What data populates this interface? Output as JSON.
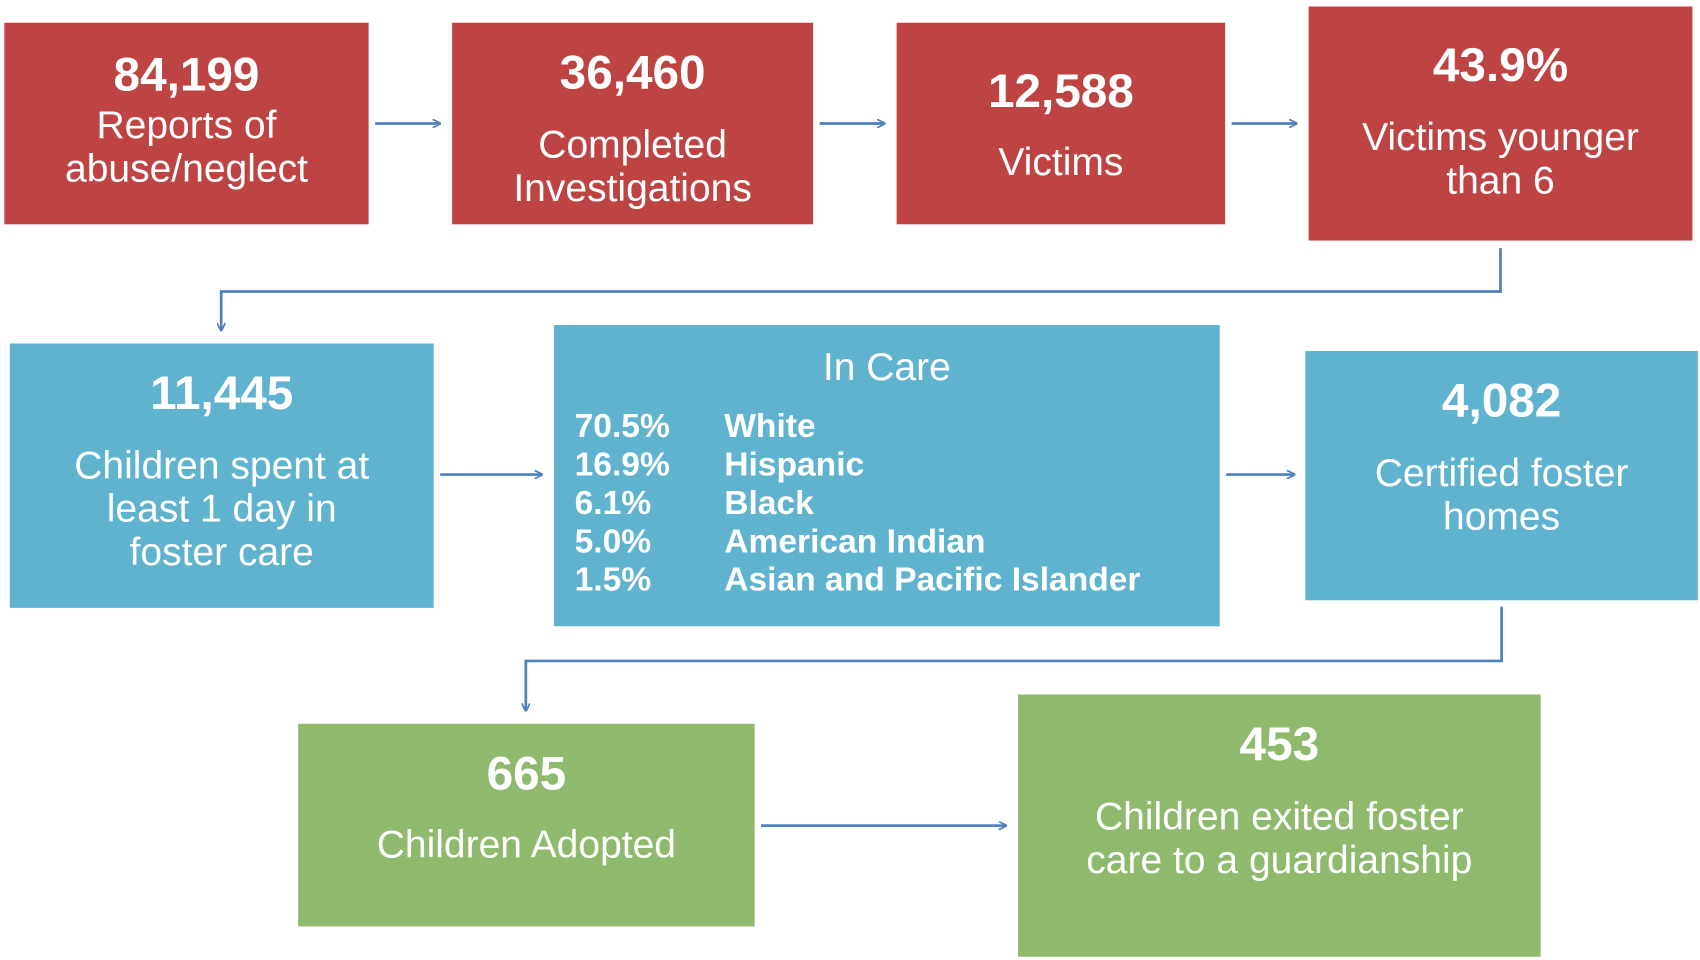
{
  "nodes": [
    {
      "value": "84,199",
      "label_lines": [
        "Reports of",
        "abuse/neglect"
      ]
    },
    {
      "value": "36,460",
      "label_lines": [
        "Completed",
        "Investigations"
      ]
    },
    {
      "value": "12,588",
      "label_lines": [
        "Victims"
      ]
    },
    {
      "value": "43.9%",
      "label_lines": [
        "Victims younger",
        "than 6"
      ]
    },
    {
      "value": "11,445",
      "label_lines": [
        "Children spent at",
        "least 1 day in",
        "foster care"
      ]
    },
    {
      "value": "4,082",
      "label_lines": [
        "Certified foster",
        "homes"
      ]
    },
    {
      "value": "665",
      "label_lines": [
        "Children Adopted"
      ]
    },
    {
      "value": "453",
      "label_lines": [
        "Children exited foster",
        "care to a guardianship"
      ]
    }
  ],
  "in_care": {
    "title": "In Care",
    "rows": [
      {
        "percent": "70.5%",
        "group": "White"
      },
      {
        "percent": "16.9%",
        "group": "Hispanic"
      },
      {
        "percent": "6.1%",
        "group": "Black"
      },
      {
        "percent": "5.0%",
        "group": "American Indian"
      },
      {
        "percent": "1.5%",
        "group": "Asian and Pacific Islander"
      }
    ]
  }
}
